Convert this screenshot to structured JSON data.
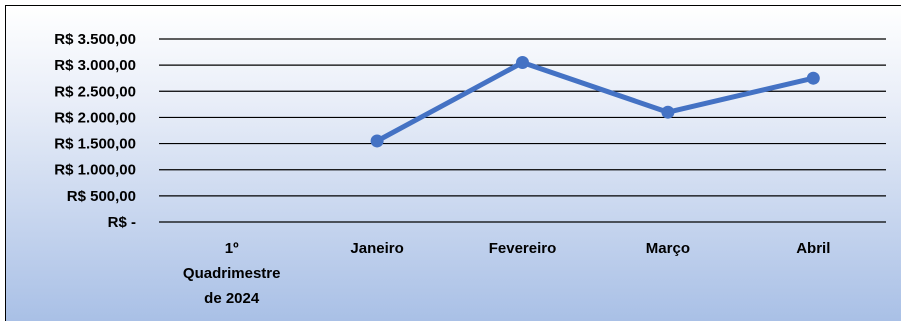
{
  "chart_data": {
    "type": "line",
    "categories": [
      "1º Quadrimestre de 2024",
      "Janeiro",
      "Fevereiro",
      "Março",
      "Abril"
    ],
    "category_label_lines": [
      [
        "1º",
        "Quadrimestre",
        "de 2024"
      ],
      [
        "Janeiro"
      ],
      [
        "Fevereiro"
      ],
      [
        "Março"
      ],
      [
        "Abril"
      ]
    ],
    "series": [
      {
        "values": [
          null,
          1550,
          3050,
          2100,
          2750
        ],
        "color": "#4472c4"
      }
    ],
    "y_ticks": [
      0,
      500,
      1000,
      1500,
      2000,
      2500,
      3000,
      3500
    ],
    "y_tick_labels": [
      "R$ -",
      "R$ 500,00",
      "R$ 1.000,00",
      "R$ 1.500,00",
      "R$ 2.000,00",
      "R$ 2.500,00",
      "R$ 3.000,00",
      "R$ 3.500,00"
    ],
    "ylim": [
      0,
      3500
    ],
    "grid": true,
    "legend": "none",
    "title": "",
    "xlabel": "",
    "ylabel": ""
  }
}
